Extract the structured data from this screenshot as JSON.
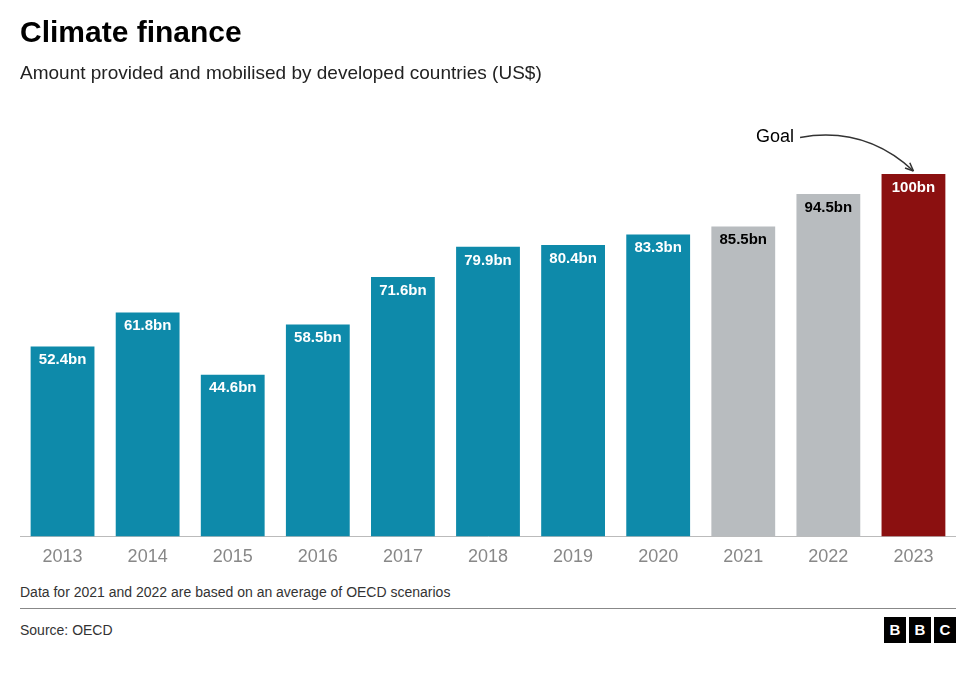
{
  "chart_data": {
    "type": "bar",
    "title": "Climate finance",
    "subtitle": "Amount provided and mobilised by developed countries (US$)",
    "categories": [
      "2013",
      "2014",
      "2015",
      "2016",
      "2017",
      "2018",
      "2019",
      "2020",
      "2021",
      "2022",
      "2023"
    ],
    "values": [
      52.4,
      61.8,
      44.6,
      58.5,
      71.6,
      79.9,
      80.4,
      83.3,
      85.5,
      94.5,
      100
    ],
    "value_labels": [
      "52.4bn",
      "61.8bn",
      "44.6bn",
      "58.5bn",
      "71.6bn",
      "79.9bn",
      "80.4bn",
      "83.3bn",
      "85.5bn",
      "94.5bn",
      "100bn"
    ],
    "colors": [
      "#0e8aaa",
      "#0e8aaa",
      "#0e8aaa",
      "#0e8aaa",
      "#0e8aaa",
      "#0e8aaa",
      "#0e8aaa",
      "#0e8aaa",
      "#b8bcbf",
      "#b8bcbf",
      "#8b1010"
    ],
    "data_labels": true,
    "annotations": [
      {
        "text": "Goal",
        "category": "2023"
      }
    ],
    "footnote": "Data for 2021 and 2022 are based on an average of OECD scenarios",
    "source": "Source: OECD",
    "logo": "BBC",
    "ylim": [
      0,
      118
    ],
    "grid": false,
    "tick_labels": "x"
  }
}
